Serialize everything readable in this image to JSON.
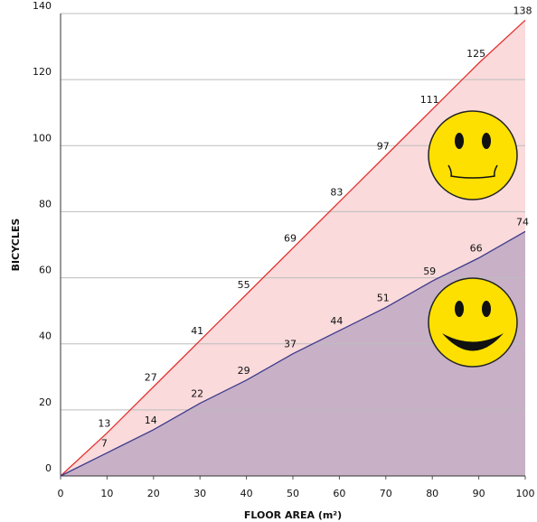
{
  "chart_data": {
    "type": "area",
    "x_label": "FLOOR AREA (m²)",
    "y_label": "BICYCLES",
    "x": [
      0,
      10,
      20,
      30,
      40,
      50,
      60,
      70,
      80,
      90,
      100
    ],
    "series": [
      {
        "color": "#e3312f",
        "fill": "#fadadb",
        "values": [
          0,
          13,
          27,
          41,
          55,
          69,
          83,
          97,
          111,
          125,
          138
        ],
        "value_labels": [
          null,
          "13",
          "27",
          "41",
          "55",
          "69",
          "83",
          "97",
          "111",
          "125",
          "138"
        ]
      },
      {
        "color": "#3b3a8c",
        "fill": "#c8b0c7",
        "values": [
          0,
          7,
          14,
          22,
          29,
          37,
          44,
          51,
          59,
          66,
          74
        ],
        "value_labels": [
          null,
          "7",
          "14",
          "22",
          "29",
          "37",
          "44",
          "51",
          "59",
          "66",
          "74"
        ]
      }
    ],
    "xlim": [
      0,
      100
    ],
    "xticks": [
      0,
      10,
      20,
      30,
      40,
      50,
      60,
      70,
      80,
      90,
      100
    ],
    "ylim": [
      0,
      140
    ],
    "yticks": [
      0,
      20,
      40,
      60,
      80,
      100,
      120,
      140
    ],
    "grid": true
  }
}
